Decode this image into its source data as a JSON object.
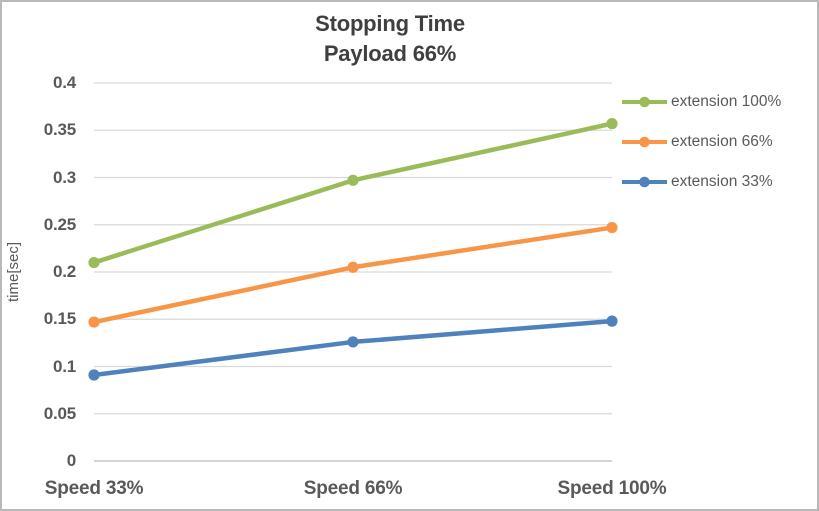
{
  "window": {
    "background": "#ffffff",
    "border_color": "#b9b9b9"
  },
  "chart_data": {
    "type": "line",
    "title": "Stopping Time",
    "subtitle": "Payload 66%",
    "xlabel": "",
    "ylabel": "time[sec]",
    "categories": [
      "Speed 33%",
      "Speed 66%",
      "Speed 100%"
    ],
    "series": [
      {
        "name": "extension 100%",
        "color": "#9BBB59",
        "values": [
          0.21,
          0.297,
          0.357
        ]
      },
      {
        "name": "extension 66%",
        "color": "#F79646",
        "values": [
          0.147,
          0.205,
          0.247
        ]
      },
      {
        "name": "extension 33%",
        "color": "#4F81BD",
        "values": [
          0.091,
          0.126,
          0.148
        ]
      }
    ],
    "ylim": [
      0,
      0.4
    ],
    "ytick_step": 0.05,
    "yticks": [
      "0",
      "0.05",
      "0.1",
      "0.15",
      "0.2",
      "0.25",
      "0.3",
      "0.35",
      "0.4"
    ],
    "grid": "horizontal-only",
    "legend_position": "right",
    "marker": "circle",
    "gridline_color": "#d9d9d9",
    "axis_line_color": "#c6c6c6",
    "text_color": "#595959",
    "title_color": "#3f3f3f"
  }
}
